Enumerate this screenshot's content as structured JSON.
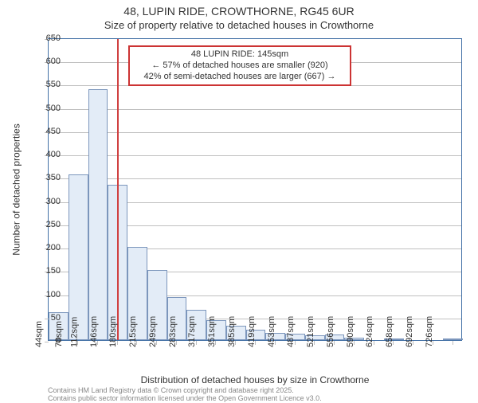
{
  "title": "48, LUPIN RIDE, CROWTHORNE, RG45 6UR",
  "subtitle": "Size of property relative to detached houses in Crowthorne",
  "ylabel": "Number of detached properties",
  "xlabel": "Distribution of detached houses by size in Crowthorne",
  "chart": {
    "type": "histogram",
    "plot_border_color": "#4572a7",
    "grid_color": "#c0c0c0",
    "background_color": "#ffffff",
    "bar_fill": "#e3ecf7",
    "bar_border": "#7c96bc",
    "marker_color": "#d04040",
    "callout_border": "#cc3333",
    "text_color": "#333333",
    "label_fontsize": 12,
    "tick_fontsize": 11,
    "ylim": [
      0,
      650
    ],
    "ytick_step": 50,
    "x_categories": [
      "44sqm",
      "78sqm",
      "112sqm",
      "146sqm",
      "180sqm",
      "215sqm",
      "249sqm",
      "283sqm",
      "317sqm",
      "351sqm",
      "385sqm",
      "419sqm",
      "453sqm",
      "487sqm",
      "521sqm",
      "556sqm",
      "590sqm",
      "624sqm",
      "658sqm",
      "692sqm",
      "726sqm"
    ],
    "x_skip": 1,
    "values": [
      60,
      355,
      538,
      333,
      200,
      150,
      92,
      65,
      42,
      30,
      22,
      15,
      13,
      10,
      12,
      5,
      0,
      2,
      0,
      0,
      3
    ],
    "bar_gap_ratio": 0.0,
    "marker_x_value": 145,
    "x_min": 27,
    "x_bin_width": 34
  },
  "callout": {
    "line1": "48 LUPIN RIDE: 145sqm",
    "line2": "← 57% of detached houses are smaller (920)",
    "line3": "42% of semi-detached houses are larger (667) →"
  },
  "credits": {
    "line1": "Contains HM Land Registry data © Crown copyright and database right 2025.",
    "line2": "Contains public sector information licensed under the Open Government Licence v3.0."
  }
}
